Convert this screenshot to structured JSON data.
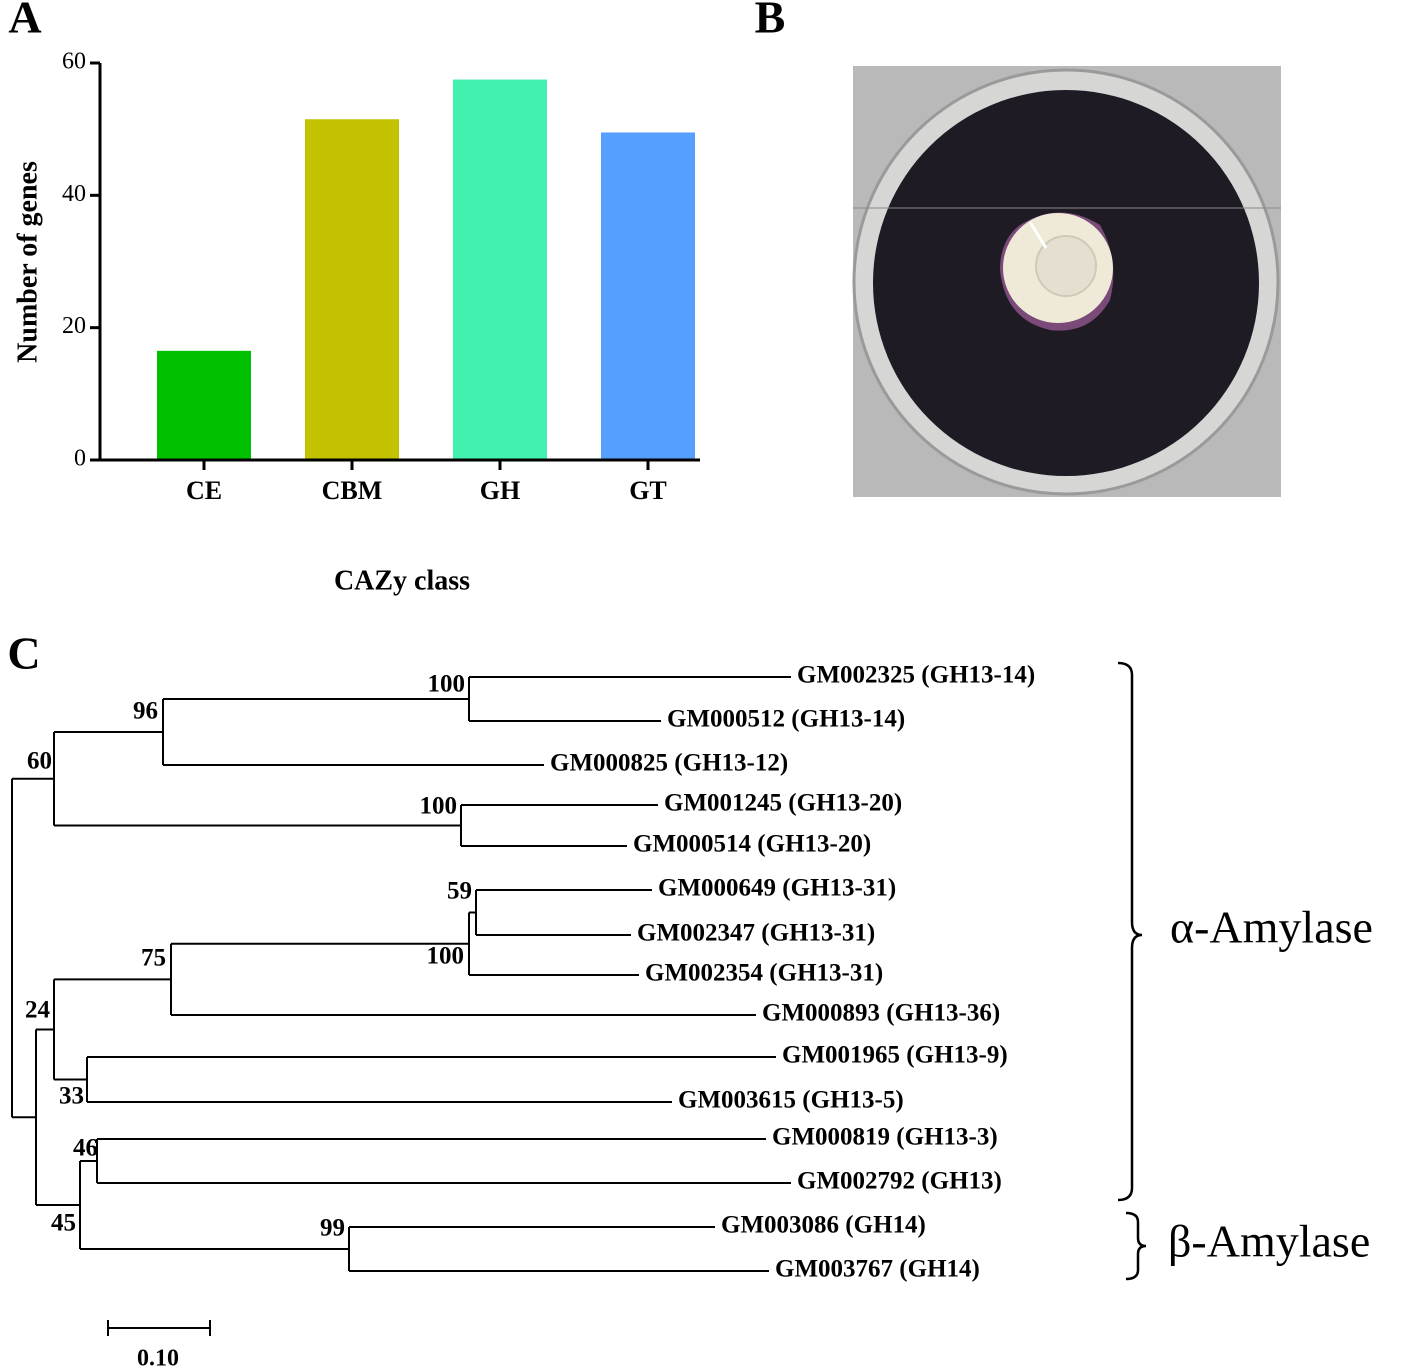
{
  "panels": {
    "a": "A",
    "b": "B",
    "c": "C"
  },
  "chart_data": {
    "type": "bar",
    "x_label": "CAZy class",
    "y_label": "Number of genes",
    "categories": [
      "CE",
      "CBM",
      "GH",
      "GT"
    ],
    "series": [
      {
        "name": "Number of genes",
        "values": [
          16.5,
          51.5,
          57.5,
          49.5
        ]
      }
    ],
    "colors": [
      "#00c000",
      "#c2c200",
      "#42f0b0",
      "#559fff"
    ],
    "ylim": [
      0,
      60
    ],
    "yticks": [
      0,
      20,
      40,
      60
    ],
    "grid": false
  },
  "tree": {
    "leaves": [
      "GM002325 (GH13-14)",
      "GM000512 (GH13-14)",
      "GM000825 (GH13-12)",
      "GM001245 (GH13-20)",
      "GM000514 (GH13-20)",
      "GM000649 (GH13-31)",
      "GM002347 (GH13-31)",
      "GM002354 (GH13-31)",
      "GM000893 (GH13-36)",
      "GM001965 (GH13-9)",
      "GM003615 (GH13-5)",
      "GM000819 (GH13-3)",
      "GM002792 (GH13)",
      "GM003086 (GH14)",
      "GM003767 (GH14)"
    ],
    "supports": [
      100,
      96,
      60,
      100,
      59,
      100,
      75,
      24,
      33,
      46,
      45,
      99
    ],
    "scale_label": "0.10",
    "groups": [
      "α-Amylase",
      "β-Amylase"
    ]
  }
}
